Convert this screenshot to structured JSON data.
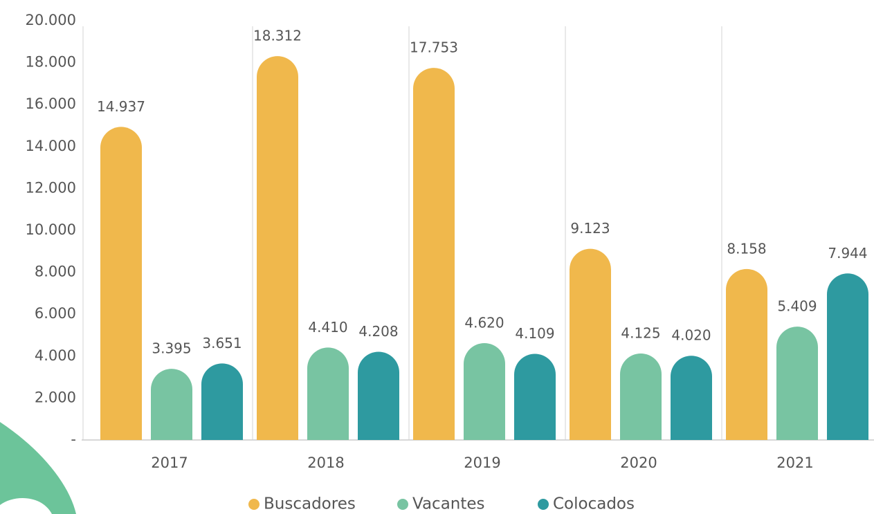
{
  "chart_data": {
    "type": "bar",
    "categories": [
      "2017",
      "2018",
      "2019",
      "2020",
      "2021"
    ],
    "series": [
      {
        "name": "Buscadores",
        "color": "#f0b84c",
        "values": [
          14937,
          18312,
          17753,
          9123,
          8158
        ],
        "value_labels": [
          "14.937",
          "18.312",
          "17.753",
          "9.123",
          "8.158"
        ]
      },
      {
        "name": "Vacantes",
        "color": "#78c4a2",
        "values": [
          3395,
          4410,
          4620,
          4125,
          5409
        ],
        "value_labels": [
          "3.395",
          "4.410",
          "4.620",
          "4.125",
          "5.409"
        ]
      },
      {
        "name": "Colocados",
        "color": "#2e9aa0",
        "values": [
          3651,
          4208,
          4109,
          4020,
          7944
        ],
        "value_labels": [
          "3.651",
          "4.208",
          "4.109",
          "4.020",
          "7.944"
        ]
      }
    ],
    "ylim": [
      0,
      20000
    ],
    "yticks": [
      {
        "value": 0,
        "label": "-"
      },
      {
        "value": 2000,
        "label": "2.000"
      },
      {
        "value": 4000,
        "label": "4.000"
      },
      {
        "value": 6000,
        "label": "6.000"
      },
      {
        "value": 8000,
        "label": "8.000"
      },
      {
        "value": 10000,
        "label": "10.000"
      },
      {
        "value": 12000,
        "label": "12.000"
      },
      {
        "value": 14000,
        "label": "14.000"
      },
      {
        "value": 16000,
        "label": "16.000"
      },
      {
        "value": 18000,
        "label": "18.000"
      },
      {
        "value": 20000,
        "label": "20.000"
      }
    ],
    "legend": "bottom"
  }
}
